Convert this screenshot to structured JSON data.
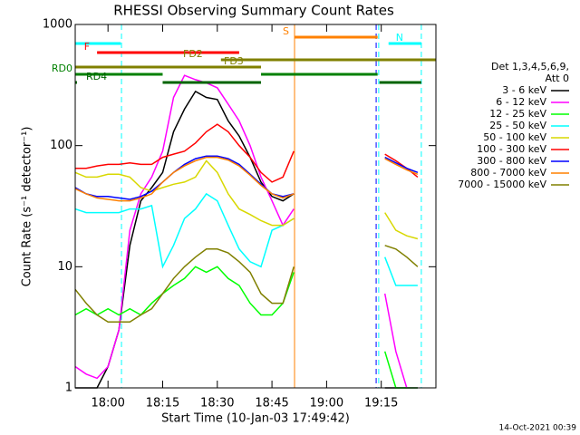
{
  "chart_data": {
    "type": "line",
    "title": "RHESSI Observing Summary Count Rates",
    "xlabel": "Start Time (10-Jan-03 17:49:42)",
    "ylabel": "Count Rate (s⁻¹ detector⁻¹)",
    "footer": "14-Oct-2021 00:39",
    "legend_header": [
      "Det 1,3,4,5,6,9,",
      "Att 0"
    ],
    "log_y": true,
    "xlim": [
      1071,
      1170
    ],
    "ylim": [
      1,
      1000
    ],
    "xticks": [
      {
        "value": 1080,
        "label": "18:00"
      },
      {
        "value": 1095,
        "label": "18:15"
      },
      {
        "value": 1110,
        "label": "18:30"
      },
      {
        "value": 1125,
        "label": "18:45"
      },
      {
        "value": 1140,
        "label": "19:00"
      },
      {
        "value": 1155,
        "label": "19:15"
      }
    ],
    "yticks": [
      1,
      10,
      100,
      1000
    ],
    "x": [
      1071,
      1074,
      1077,
      1080,
      1083,
      1086,
      1089,
      1092,
      1095,
      1098,
      1101,
      1104,
      1107,
      1110,
      1113,
      1116,
      1119,
      1122,
      1125,
      1128,
      1131,
      1143,
      1156,
      1159,
      1162,
      1165
    ],
    "series": [
      {
        "name": "3 - 6 keV",
        "color": "#000000",
        "values": [
          1,
          1,
          1,
          1.5,
          3,
          15,
          35,
          45,
          60,
          130,
          200,
          280,
          250,
          240,
          160,
          120,
          80,
          50,
          38,
          35,
          40,
          null,
          1,
          1,
          1,
          1
        ]
      },
      {
        "name": "6 - 12 keV",
        "color": "#ff00ff",
        "values": [
          1.5,
          1.3,
          1.2,
          1.5,
          3,
          20,
          40,
          55,
          90,
          250,
          380,
          350,
          330,
          300,
          220,
          160,
          100,
          55,
          35,
          22,
          30,
          null,
          6,
          2,
          1,
          1
        ]
      },
      {
        "name": "12 - 25 keV",
        "color": "#00ff00",
        "values": [
          4,
          4.5,
          4,
          4.5,
          4,
          4.5,
          4,
          5,
          6,
          7,
          8,
          10,
          9,
          10,
          8,
          7,
          5,
          4,
          4,
          5,
          9,
          null,
          2,
          1,
          1,
          1
        ]
      },
      {
        "name": "25 - 50 keV",
        "color": "#00ffff",
        "values": [
          30,
          28,
          28,
          28,
          28,
          30,
          30,
          32,
          10,
          15,
          25,
          30,
          40,
          35,
          22,
          14,
          11,
          10,
          20,
          22,
          25,
          null,
          12,
          7,
          7,
          7
        ]
      },
      {
        "name": "50 - 100 keV",
        "color": "#d8d800",
        "values": [
          60,
          55,
          55,
          58,
          58,
          55,
          45,
          42,
          45,
          48,
          50,
          55,
          75,
          60,
          40,
          30,
          27,
          24,
          22,
          22,
          25,
          null,
          28,
          20,
          18,
          17
        ]
      },
      {
        "name": "100 - 300 keV",
        "color": "#ff0000",
        "values": [
          65,
          65,
          68,
          70,
          70,
          72,
          70,
          70,
          80,
          85,
          90,
          105,
          130,
          150,
          130,
          100,
          80,
          60,
          50,
          55,
          90,
          null,
          85,
          75,
          65,
          55
        ]
      },
      {
        "name": "300 - 800 keV",
        "color": "#0000ff",
        "values": [
          45,
          40,
          38,
          38,
          37,
          36,
          38,
          42,
          50,
          60,
          70,
          78,
          82,
          82,
          78,
          70,
          58,
          48,
          40,
          38,
          40,
          null,
          80,
          72,
          65,
          60
        ]
      },
      {
        "name": "800 - 7000 keV",
        "color": "#ff8000",
        "values": [
          44,
          40,
          37,
          36,
          35,
          35,
          37,
          40,
          50,
          60,
          68,
          75,
          80,
          80,
          76,
          68,
          57,
          47,
          40,
          37,
          40,
          null,
          78,
          70,
          63,
          58
        ]
      },
      {
        "name": "7000 - 15000 keV",
        "color": "#808000",
        "values": [
          6.5,
          5,
          4,
          3.5,
          3.5,
          3.5,
          4,
          4.5,
          6,
          8,
          10,
          12,
          14,
          14,
          13,
          11,
          9,
          6,
          5,
          5,
          10,
          null,
          15,
          14,
          12,
          10
        ]
      }
    ],
    "flags": [
      {
        "label": "N",
        "color": "#00ffff",
        "segments": [
          [
            1071,
            1083.5
          ],
          [
            1157,
            1166
          ]
        ]
      },
      {
        "label": "S",
        "color": "#ff8000",
        "segments": [
          [
            1131.2,
            1154
          ]
        ]
      },
      {
        "label": "F",
        "color": "#ff0000",
        "segments": [
          [
            1077,
            1116
          ]
        ]
      },
      {
        "label": "FD2",
        "color": "#808000",
        "segments": [
          [
            1111,
            1170
          ]
        ]
      },
      {
        "label": "FD3",
        "color": "#808000",
        "segments": [
          [
            1071,
            1122
          ]
        ]
      },
      {
        "label": "RD0",
        "color": "#008000",
        "segments": [
          [
            1071,
            1095
          ],
          [
            1122,
            1154
          ]
        ]
      },
      {
        "label": "RD4",
        "color": "#006400",
        "segments": [
          [
            1071,
            1071.5
          ],
          [
            1095,
            1122
          ],
          [
            1154.5,
            1166
          ]
        ]
      }
    ],
    "markers": [
      {
        "x": 1083.7,
        "color": "#00ffff",
        "dashed": true
      },
      {
        "x": 1131.2,
        "color": "#ff8000",
        "dashed": false
      },
      {
        "x": 1153.6,
        "color": "#0000ff",
        "dashed": true
      },
      {
        "x": 1154.3,
        "color": "#00ffff",
        "dashed": true
      },
      {
        "x": 1166,
        "color": "#00ffff",
        "dashed": true
      }
    ]
  }
}
